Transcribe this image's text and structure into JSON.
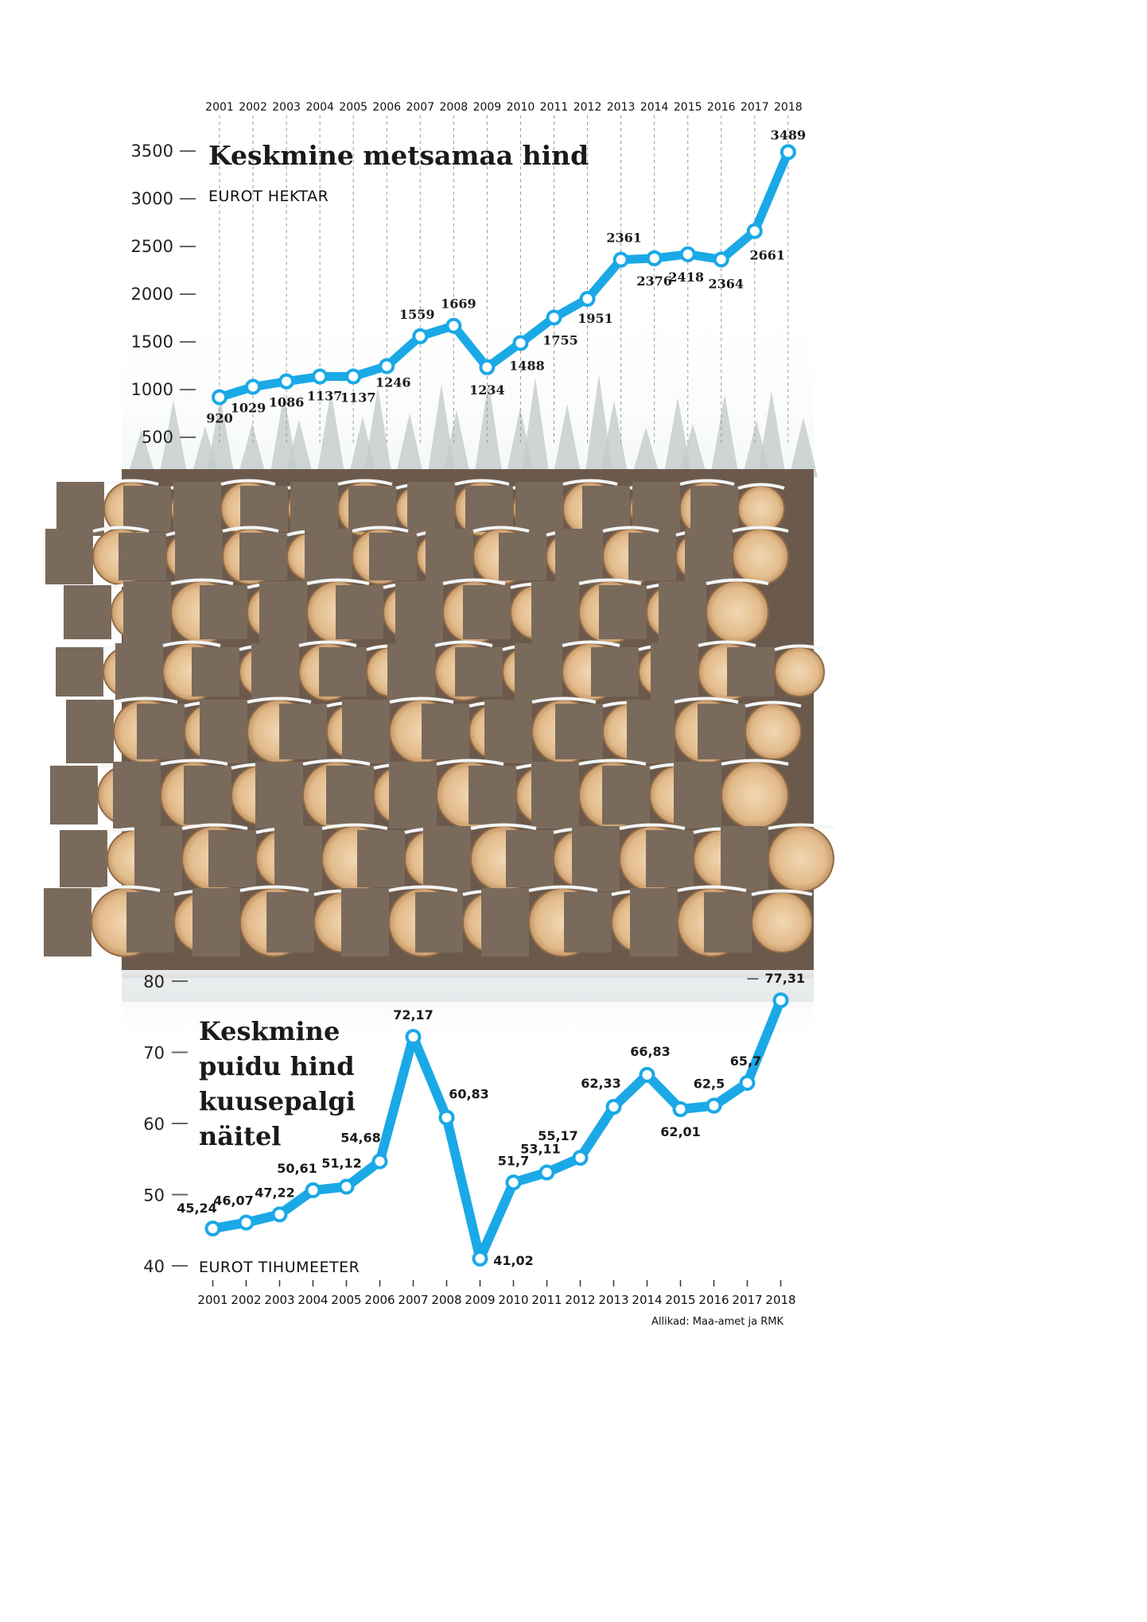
{
  "chart_data": [
    {
      "type": "line",
      "title": "Keskmine metsamaa hind",
      "subtitle": "EUROT HEKTAR",
      "x": [
        "2001",
        "2002",
        "2003",
        "2004",
        "2005",
        "2006",
        "2007",
        "2008",
        "2009",
        "2010",
        "2011",
        "2012",
        "2013",
        "2014",
        "2015",
        "2016",
        "2017",
        "2018"
      ],
      "values": [
        920,
        1029,
        1086,
        1137,
        1137,
        1246,
        1559,
        1669,
        1234,
        1488,
        1755,
        1951,
        2361,
        2376,
        2418,
        2364,
        2661,
        3489
      ],
      "value_labels": [
        "920",
        "1029",
        "1086",
        "1137",
        "1137",
        "1246",
        "1559",
        "1669",
        "1234",
        "1488",
        "1755",
        "1951",
        "2361",
        "2376",
        "2418",
        "2364",
        "2661",
        "3489"
      ],
      "yticks": [
        "500",
        "1000",
        "1500",
        "2000",
        "2500",
        "3000",
        "3500"
      ],
      "ylim": [
        500,
        3500
      ],
      "grid": "dashed vertical",
      "color": "#1aa9e6"
    },
    {
      "type": "line",
      "title": [
        "Keskmine",
        "puidu hind",
        "kuusepalgi",
        "näitel"
      ],
      "subtitle": "EUROT TIHUMEETER",
      "x": [
        "2001",
        "2002",
        "2003",
        "2004",
        "2005",
        "2006",
        "2007",
        "2008",
        "2009",
        "2010",
        "2011",
        "2012",
        "2013",
        "2014",
        "2015",
        "2016",
        "2017",
        "2018"
      ],
      "values": [
        45.24,
        46.07,
        47.22,
        50.61,
        51.12,
        54.68,
        72.17,
        60.83,
        41.02,
        51.7,
        53.11,
        55.17,
        62.33,
        66.83,
        62.01,
        62.5,
        65.7,
        77.31
      ],
      "value_labels": [
        "45,24",
        "46,07",
        "47,22",
        "50,61",
        "51,12",
        "54,68",
        "72,17",
        "60,83",
        "41,02",
        "51,7",
        "53,11",
        "55,17",
        "62,33",
        "66,83",
        "62,01",
        "62,5",
        "65,7",
        "77,31"
      ],
      "yticks": [
        "40",
        "50",
        "60",
        "70",
        "80"
      ],
      "ylim": [
        40,
        80
      ],
      "color": "#1aa9e6"
    }
  ],
  "source": "Allikad: Maa-amet ja RMK"
}
